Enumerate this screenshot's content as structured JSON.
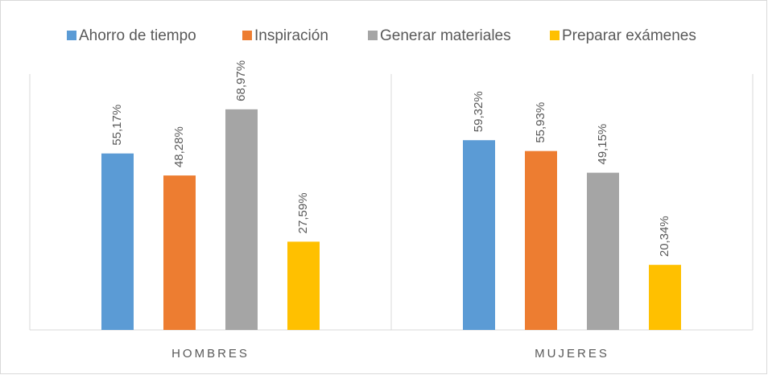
{
  "chart_data": {
    "type": "bar",
    "categories": [
      "HOMBRES",
      "MUJERES"
    ],
    "series": [
      {
        "name": "Ahorro de tiempo",
        "color": "#5b9bd5",
        "values": [
          55.17,
          59.32
        ],
        "value_labels": [
          "55,17%",
          "59,32%"
        ]
      },
      {
        "name": "Inspiración",
        "color": "#ed7d31",
        "values": [
          48.28,
          55.93
        ],
        "value_labels": [
          "48,28%",
          "55,93%"
        ]
      },
      {
        "name": "Generar materiales",
        "color": "#a5a5a5",
        "values": [
          68.97,
          49.15
        ],
        "value_labels": [
          "68,97%",
          "49,15%"
        ]
      },
      {
        "name": "Preparar exámenes",
        "color": "#ffc000",
        "values": [
          27.59,
          20.34
        ],
        "value_labels": [
          "27,59%",
          "20,34%"
        ]
      }
    ],
    "ylim": [
      0,
      80
    ],
    "legend": "top"
  }
}
